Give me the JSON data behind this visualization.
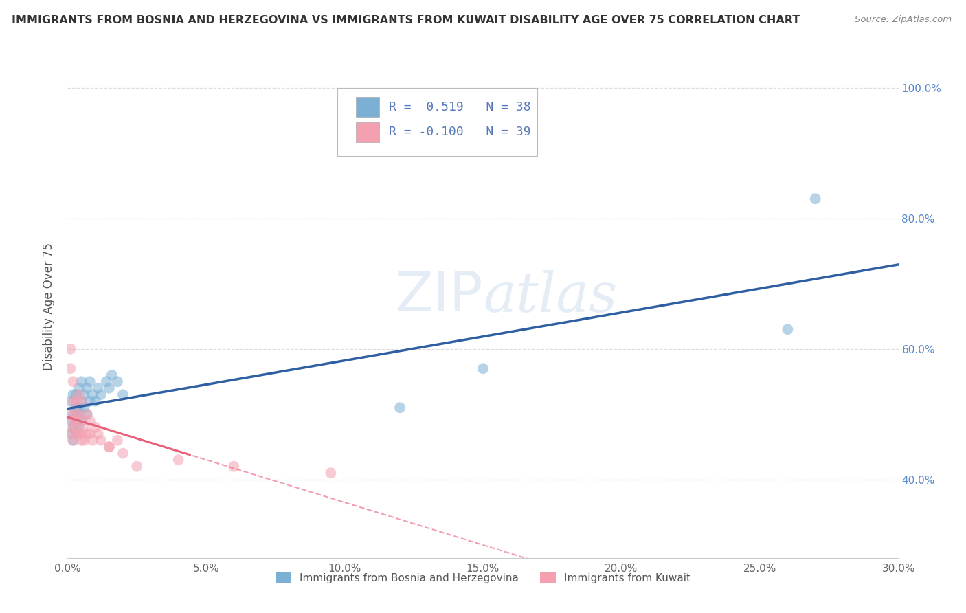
{
  "title": "IMMIGRANTS FROM BOSNIA AND HERZEGOVINA VS IMMIGRANTS FROM KUWAIT DISABILITY AGE OVER 75 CORRELATION CHART",
  "source": "Source: ZipAtlas.com",
  "ylabel": "Disability Age Over 75",
  "xlim": [
    0.0,
    0.3
  ],
  "ylim": [
    0.28,
    1.05
  ],
  "yticks": [
    0.4,
    0.6,
    0.8,
    1.0
  ],
  "ytick_labels": [
    "40.0%",
    "60.0%",
    "80.0%",
    "100.0%"
  ],
  "xticks": [
    0.0,
    0.05,
    0.1,
    0.15,
    0.2,
    0.25,
    0.3
  ],
  "xtick_labels": [
    "0.0%",
    "5.0%",
    "10.0%",
    "15.0%",
    "20.0%",
    "25.0%",
    "30.0%"
  ],
  "legend1_label": "Immigrants from Bosnia and Herzegovina",
  "legend2_label": "Immigrants from Kuwait",
  "R1": 0.519,
  "N1": 38,
  "R2": -0.1,
  "N2": 39,
  "blue_color": "#7BAFD4",
  "pink_color": "#F4A0B0",
  "blue_line_color": "#2E5FA3",
  "pink_line_color": "#E8607A",
  "background_color": "#FFFFFF",
  "grid_color": "#DDDDDD",
  "bosnia_x": [
    0.001,
    0.001,
    0.001,
    0.002,
    0.002,
    0.002,
    0.002,
    0.003,
    0.003,
    0.003,
    0.003,
    0.003,
    0.004,
    0.004,
    0.004,
    0.004,
    0.005,
    0.005,
    0.005,
    0.006,
    0.006,
    0.007,
    0.007,
    0.008,
    0.008,
    0.009,
    0.01,
    0.011,
    0.012,
    0.014,
    0.015,
    0.016,
    0.018,
    0.02,
    0.12,
    0.15,
    0.26,
    0.27
  ],
  "bosnia_y": [
    0.47,
    0.49,
    0.52,
    0.48,
    0.5,
    0.53,
    0.46,
    0.49,
    0.51,
    0.53,
    0.47,
    0.5,
    0.48,
    0.51,
    0.54,
    0.5,
    0.49,
    0.52,
    0.55,
    0.51,
    0.53,
    0.5,
    0.54,
    0.52,
    0.55,
    0.53,
    0.52,
    0.54,
    0.53,
    0.55,
    0.54,
    0.56,
    0.55,
    0.53,
    0.51,
    0.57,
    0.63,
    0.83
  ],
  "kuwait_x": [
    0.001,
    0.001,
    0.001,
    0.001,
    0.002,
    0.002,
    0.002,
    0.002,
    0.002,
    0.003,
    0.003,
    0.003,
    0.003,
    0.003,
    0.004,
    0.004,
    0.004,
    0.005,
    0.005,
    0.005,
    0.005,
    0.006,
    0.006,
    0.007,
    0.007,
    0.008,
    0.008,
    0.009,
    0.01,
    0.011,
    0.012,
    0.015,
    0.018,
    0.02,
    0.025,
    0.04,
    0.06,
    0.095,
    0.015
  ],
  "kuwait_y": [
    0.57,
    0.6,
    0.5,
    0.47,
    0.49,
    0.52,
    0.46,
    0.48,
    0.55,
    0.47,
    0.49,
    0.52,
    0.5,
    0.48,
    0.47,
    0.5,
    0.53,
    0.46,
    0.49,
    0.47,
    0.52,
    0.48,
    0.46,
    0.5,
    0.47,
    0.47,
    0.49,
    0.46,
    0.48,
    0.47,
    0.46,
    0.45,
    0.46,
    0.44,
    0.42,
    0.43,
    0.42,
    0.41,
    0.45
  ]
}
